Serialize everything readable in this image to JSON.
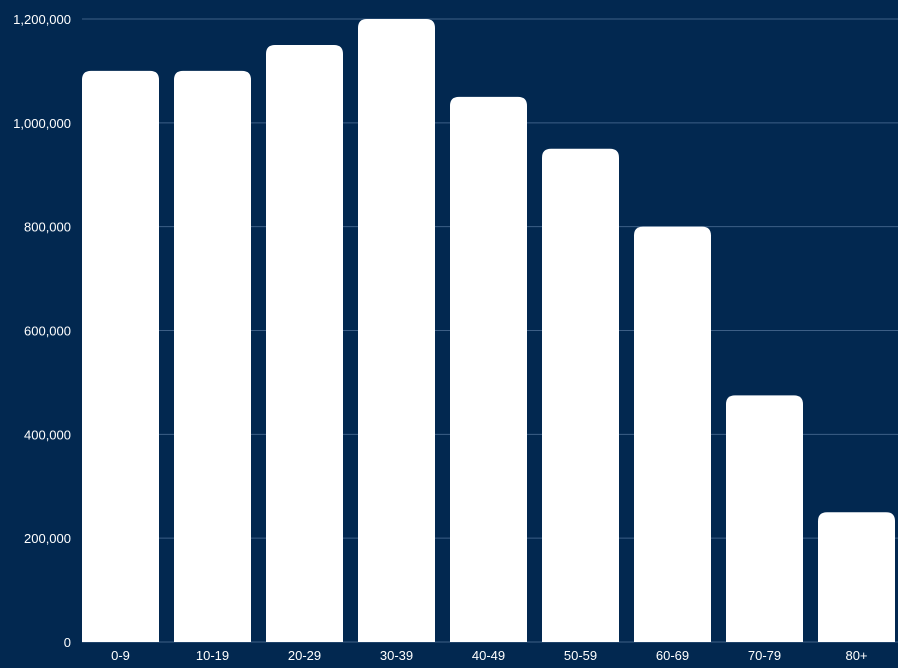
{
  "chart_data": {
    "type": "bar",
    "title": "",
    "xlabel": "",
    "ylabel": "",
    "categories": [
      "0-9",
      "10-19",
      "20-29",
      "30-39",
      "40-49",
      "50-59",
      "60-69",
      "70-79",
      "80+"
    ],
    "values": [
      1100000,
      1100000,
      1150000,
      1200000,
      1050000,
      950000,
      800000,
      475000,
      250000
    ],
    "ylim": [
      0,
      1200000
    ],
    "yticks": [
      0,
      200000,
      400000,
      600000,
      800000,
      1000000,
      1200000
    ],
    "ytick_labels": [
      "0",
      "200,000",
      "400,000",
      "600,000",
      "800,000",
      "1,000,000",
      "1,200,000"
    ],
    "grid": true,
    "legend": "none"
  },
  "colors": {
    "background": "#022850",
    "bar": "#ffffff",
    "gridline": "#3d5f86",
    "text": "#ffffff"
  }
}
